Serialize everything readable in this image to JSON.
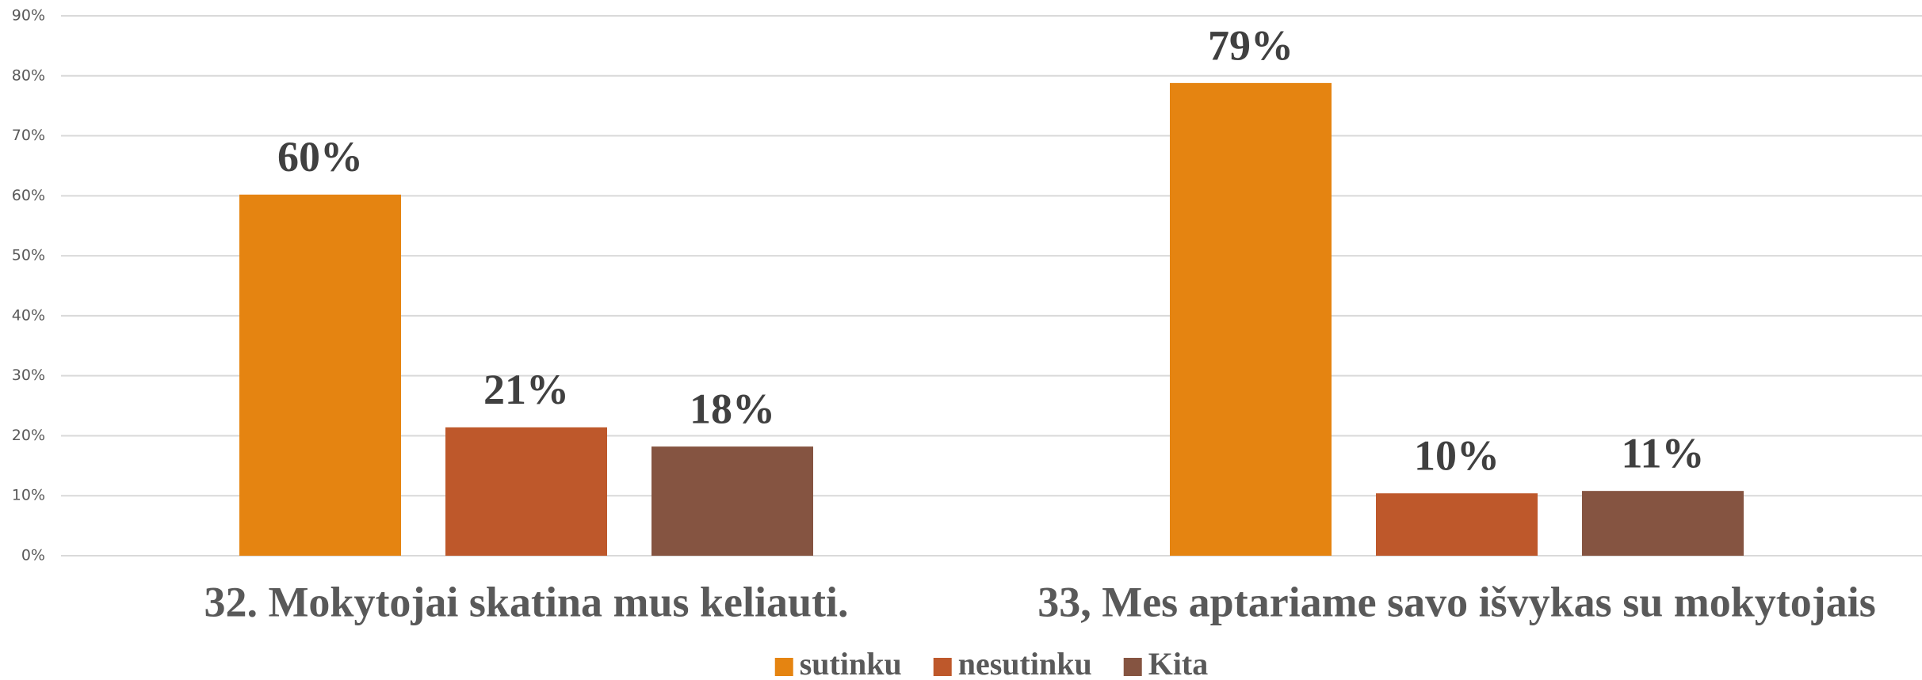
{
  "chart_data": {
    "type": "bar",
    "categories": [
      "32. Mokytojai skatina mus keliauti.",
      "33, Mes aptariame savo išvykas su mokytojais"
    ],
    "series": [
      {
        "name": "sutinku",
        "color": "#E58411",
        "values": [
          60.2,
          78.8
        ],
        "value_labels": [
          "60%",
          "79%"
        ]
      },
      {
        "name": "nesutinku",
        "color": "#BE582B",
        "values": [
          21.4,
          10.4
        ],
        "value_labels": [
          "21%",
          "10%"
        ]
      },
      {
        "name": "Kita",
        "color": "#855441",
        "values": [
          18.2,
          10.8
        ],
        "value_labels": [
          "18%",
          "11%"
        ]
      }
    ],
    "ylim": [
      0,
      90
    ],
    "yticks": [
      {
        "value": 0,
        "label": "0%"
      },
      {
        "value": 10,
        "label": "10%"
      },
      {
        "value": 20,
        "label": "20%"
      },
      {
        "value": 30,
        "label": "30%"
      },
      {
        "value": 40,
        "label": "40%"
      },
      {
        "value": 50,
        "label": "50%"
      },
      {
        "value": 60,
        "label": "60%"
      },
      {
        "value": 70,
        "label": "70%"
      },
      {
        "value": 80,
        "label": "80%"
      },
      {
        "value": 90,
        "label": "90%"
      }
    ],
    "grid": true,
    "legend": "bottom"
  }
}
